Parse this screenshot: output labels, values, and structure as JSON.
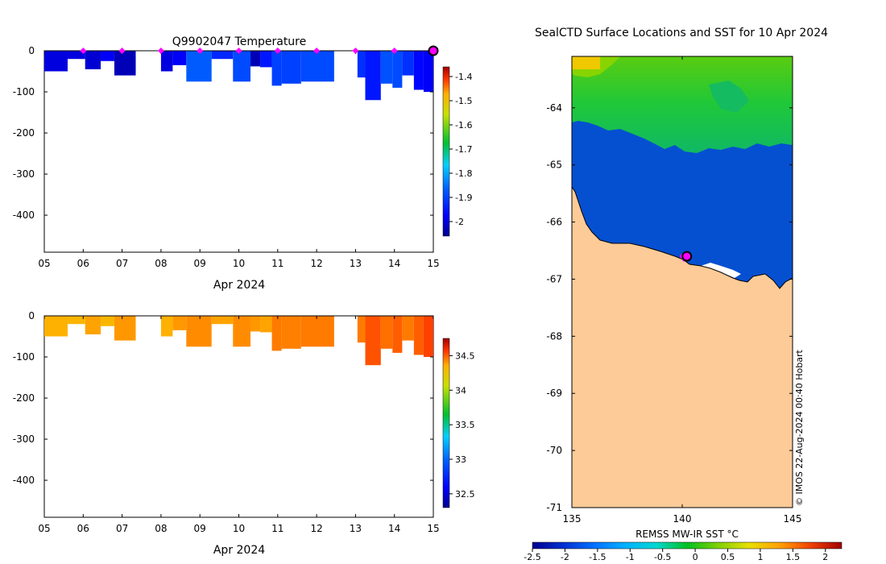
{
  "chart_data": [
    {
      "type": "heatmap",
      "panel": "temperature",
      "title": "Q9902047  Temperature",
      "xlabel": "Apr 2024",
      "ylabel": "",
      "xlim": [
        5,
        15
      ],
      "ylim": [
        -490,
        0
      ],
      "xticks": [
        "05",
        "06",
        "07",
        "08",
        "09",
        "10",
        "11",
        "12",
        "13",
        "14",
        "15"
      ],
      "yticks": [
        "0",
        "-100",
        "-200",
        "-300",
        "-400"
      ],
      "colorbar": {
        "min": -2.06,
        "max": -1.36,
        "ticks": [
          "-1.4",
          "-1.5",
          "-1.6",
          "-1.7",
          "-1.8",
          "-1.9",
          "-2"
        ]
      },
      "profile_markers_day": [
        6,
        7,
        8,
        9,
        10,
        11,
        12,
        13,
        14
      ],
      "latest_profile_day": 15,
      "profiles": [
        {
          "x0": 5.0,
          "x1": 5.6,
          "depth": 50,
          "value": -2.0
        },
        {
          "x0": 5.6,
          "x1": 6.05,
          "depth": 20,
          "value": -2.0
        },
        {
          "x0": 6.05,
          "x1": 6.45,
          "depth": 45,
          "value": -2.01
        },
        {
          "x0": 6.45,
          "x1": 6.8,
          "depth": 25,
          "value": -1.98
        },
        {
          "x0": 6.8,
          "x1": 7.35,
          "depth": 60,
          "value": -2.03
        },
        {
          "x0": 8.0,
          "x1": 8.3,
          "depth": 50,
          "value": -2.0
        },
        {
          "x0": 8.3,
          "x1": 8.65,
          "depth": 35,
          "value": -1.98
        },
        {
          "x0": 8.65,
          "x1": 9.3,
          "depth": 75,
          "value": -1.87
        },
        {
          "x0": 9.3,
          "x1": 9.85,
          "depth": 20,
          "value": -1.93
        },
        {
          "x0": 9.85,
          "x1": 10.3,
          "depth": 75,
          "value": -1.89
        },
        {
          "x0": 10.3,
          "x1": 10.55,
          "depth": 38,
          "value": -2.03
        },
        {
          "x0": 10.55,
          "x1": 10.85,
          "depth": 40,
          "value": -1.95
        },
        {
          "x0": 10.85,
          "x1": 11.1,
          "depth": 85,
          "value": -1.9
        },
        {
          "x0": 11.1,
          "x1": 11.6,
          "depth": 80,
          "value": -1.9
        },
        {
          "x0": 11.6,
          "x1": 12.45,
          "depth": 75,
          "value": -1.89
        },
        {
          "x0": 13.05,
          "x1": 13.25,
          "depth": 65,
          "value": -1.92
        },
        {
          "x0": 13.25,
          "x1": 13.65,
          "depth": 120,
          "value": -1.95
        },
        {
          "x0": 13.65,
          "x1": 13.95,
          "depth": 80,
          "value": -1.88
        },
        {
          "x0": 13.95,
          "x1": 14.2,
          "depth": 90,
          "value": -1.89
        },
        {
          "x0": 14.2,
          "x1": 14.5,
          "depth": 60,
          "value": -1.92
        },
        {
          "x0": 14.5,
          "x1": 14.75,
          "depth": 95,
          "value": -1.97
        },
        {
          "x0": 14.75,
          "x1": 15.0,
          "depth": 100,
          "value": -1.98
        }
      ]
    },
    {
      "type": "heatmap",
      "panel": "salinity",
      "title": "",
      "xlabel": "Apr 2024",
      "ylabel": "",
      "xlim": [
        5,
        15
      ],
      "ylim": [
        -490,
        0
      ],
      "xticks": [
        "05",
        "06",
        "07",
        "08",
        "09",
        "10",
        "11",
        "12",
        "13",
        "14",
        "15"
      ],
      "yticks": [
        "0",
        "-100",
        "-200",
        "-300",
        "-400"
      ],
      "colorbar": {
        "min": 32.3,
        "max": 34.75,
        "ticks": [
          "34.5",
          "34",
          "33.5",
          "33",
          "32.5"
        ]
      },
      "profiles": [
        {
          "x0": 5.0,
          "x1": 5.6,
          "depth": 50,
          "value": 34.35
        },
        {
          "x0": 5.6,
          "x1": 6.05,
          "depth": 20,
          "value": 34.33
        },
        {
          "x0": 6.05,
          "x1": 6.45,
          "depth": 45,
          "value": 34.38
        },
        {
          "x0": 6.45,
          "x1": 6.8,
          "depth": 25,
          "value": 34.32
        },
        {
          "x0": 6.8,
          "x1": 7.35,
          "depth": 60,
          "value": 34.4
        },
        {
          "x0": 8.0,
          "x1": 8.3,
          "depth": 50,
          "value": 34.35
        },
        {
          "x0": 8.3,
          "x1": 8.65,
          "depth": 35,
          "value": 34.4
        },
        {
          "x0": 8.65,
          "x1": 9.3,
          "depth": 75,
          "value": 34.42
        },
        {
          "x0": 9.3,
          "x1": 9.85,
          "depth": 20,
          "value": 34.38
        },
        {
          "x0": 9.85,
          "x1": 10.3,
          "depth": 75,
          "value": 34.42
        },
        {
          "x0": 10.3,
          "x1": 10.55,
          "depth": 38,
          "value": 34.4
        },
        {
          "x0": 10.55,
          "x1": 10.85,
          "depth": 40,
          "value": 34.38
        },
        {
          "x0": 10.85,
          "x1": 11.1,
          "depth": 85,
          "value": 34.45
        },
        {
          "x0": 11.1,
          "x1": 11.6,
          "depth": 80,
          "value": 34.44
        },
        {
          "x0": 11.6,
          "x1": 12.45,
          "depth": 75,
          "value": 34.45
        },
        {
          "x0": 13.05,
          "x1": 13.25,
          "depth": 65,
          "value": 34.45
        },
        {
          "x0": 13.25,
          "x1": 13.65,
          "depth": 120,
          "value": 34.52
        },
        {
          "x0": 13.65,
          "x1": 13.95,
          "depth": 80,
          "value": 34.47
        },
        {
          "x0": 13.95,
          "x1": 14.2,
          "depth": 90,
          "value": 34.5
        },
        {
          "x0": 14.2,
          "x1": 14.5,
          "depth": 60,
          "value": 34.45
        },
        {
          "x0": 14.5,
          "x1": 14.75,
          "depth": 95,
          "value": 34.5
        },
        {
          "x0": 14.75,
          "x1": 15.0,
          "depth": 100,
          "value": 34.55
        }
      ]
    },
    {
      "type": "heatmap",
      "panel": "sst-map",
      "title": "SealCTD Surface Locations and SST for 10 Apr 2024",
      "xlabel": "",
      "ylabel": "",
      "xlim": [
        135,
        145
      ],
      "ylim": [
        -71,
        -63.1
      ],
      "xticks": [
        "135",
        "140",
        "145"
      ],
      "yticks": [
        "-64",
        "-65",
        "-66",
        "-67",
        "-68",
        "-69",
        "-70",
        "-71"
      ],
      "colorbar": {
        "label": "REMSS MW-IR SST °C",
        "min": -2.5,
        "max": 2.25,
        "ticks": [
          "-2.5",
          "-2",
          "-1.5",
          "-1",
          "-0.5",
          "0",
          "0.5",
          "1",
          "1.5",
          "2"
        ]
      },
      "track_positions": [
        [
          140.0,
          -66.6
        ],
        [
          140.1,
          -66.65
        ],
        [
          140.2,
          -66.6
        ]
      ],
      "latest_position": [
        140.1,
        -66.6
      ],
      "credit": "© IMOS 22-Aug-2024 00:40 Hobart"
    }
  ]
}
